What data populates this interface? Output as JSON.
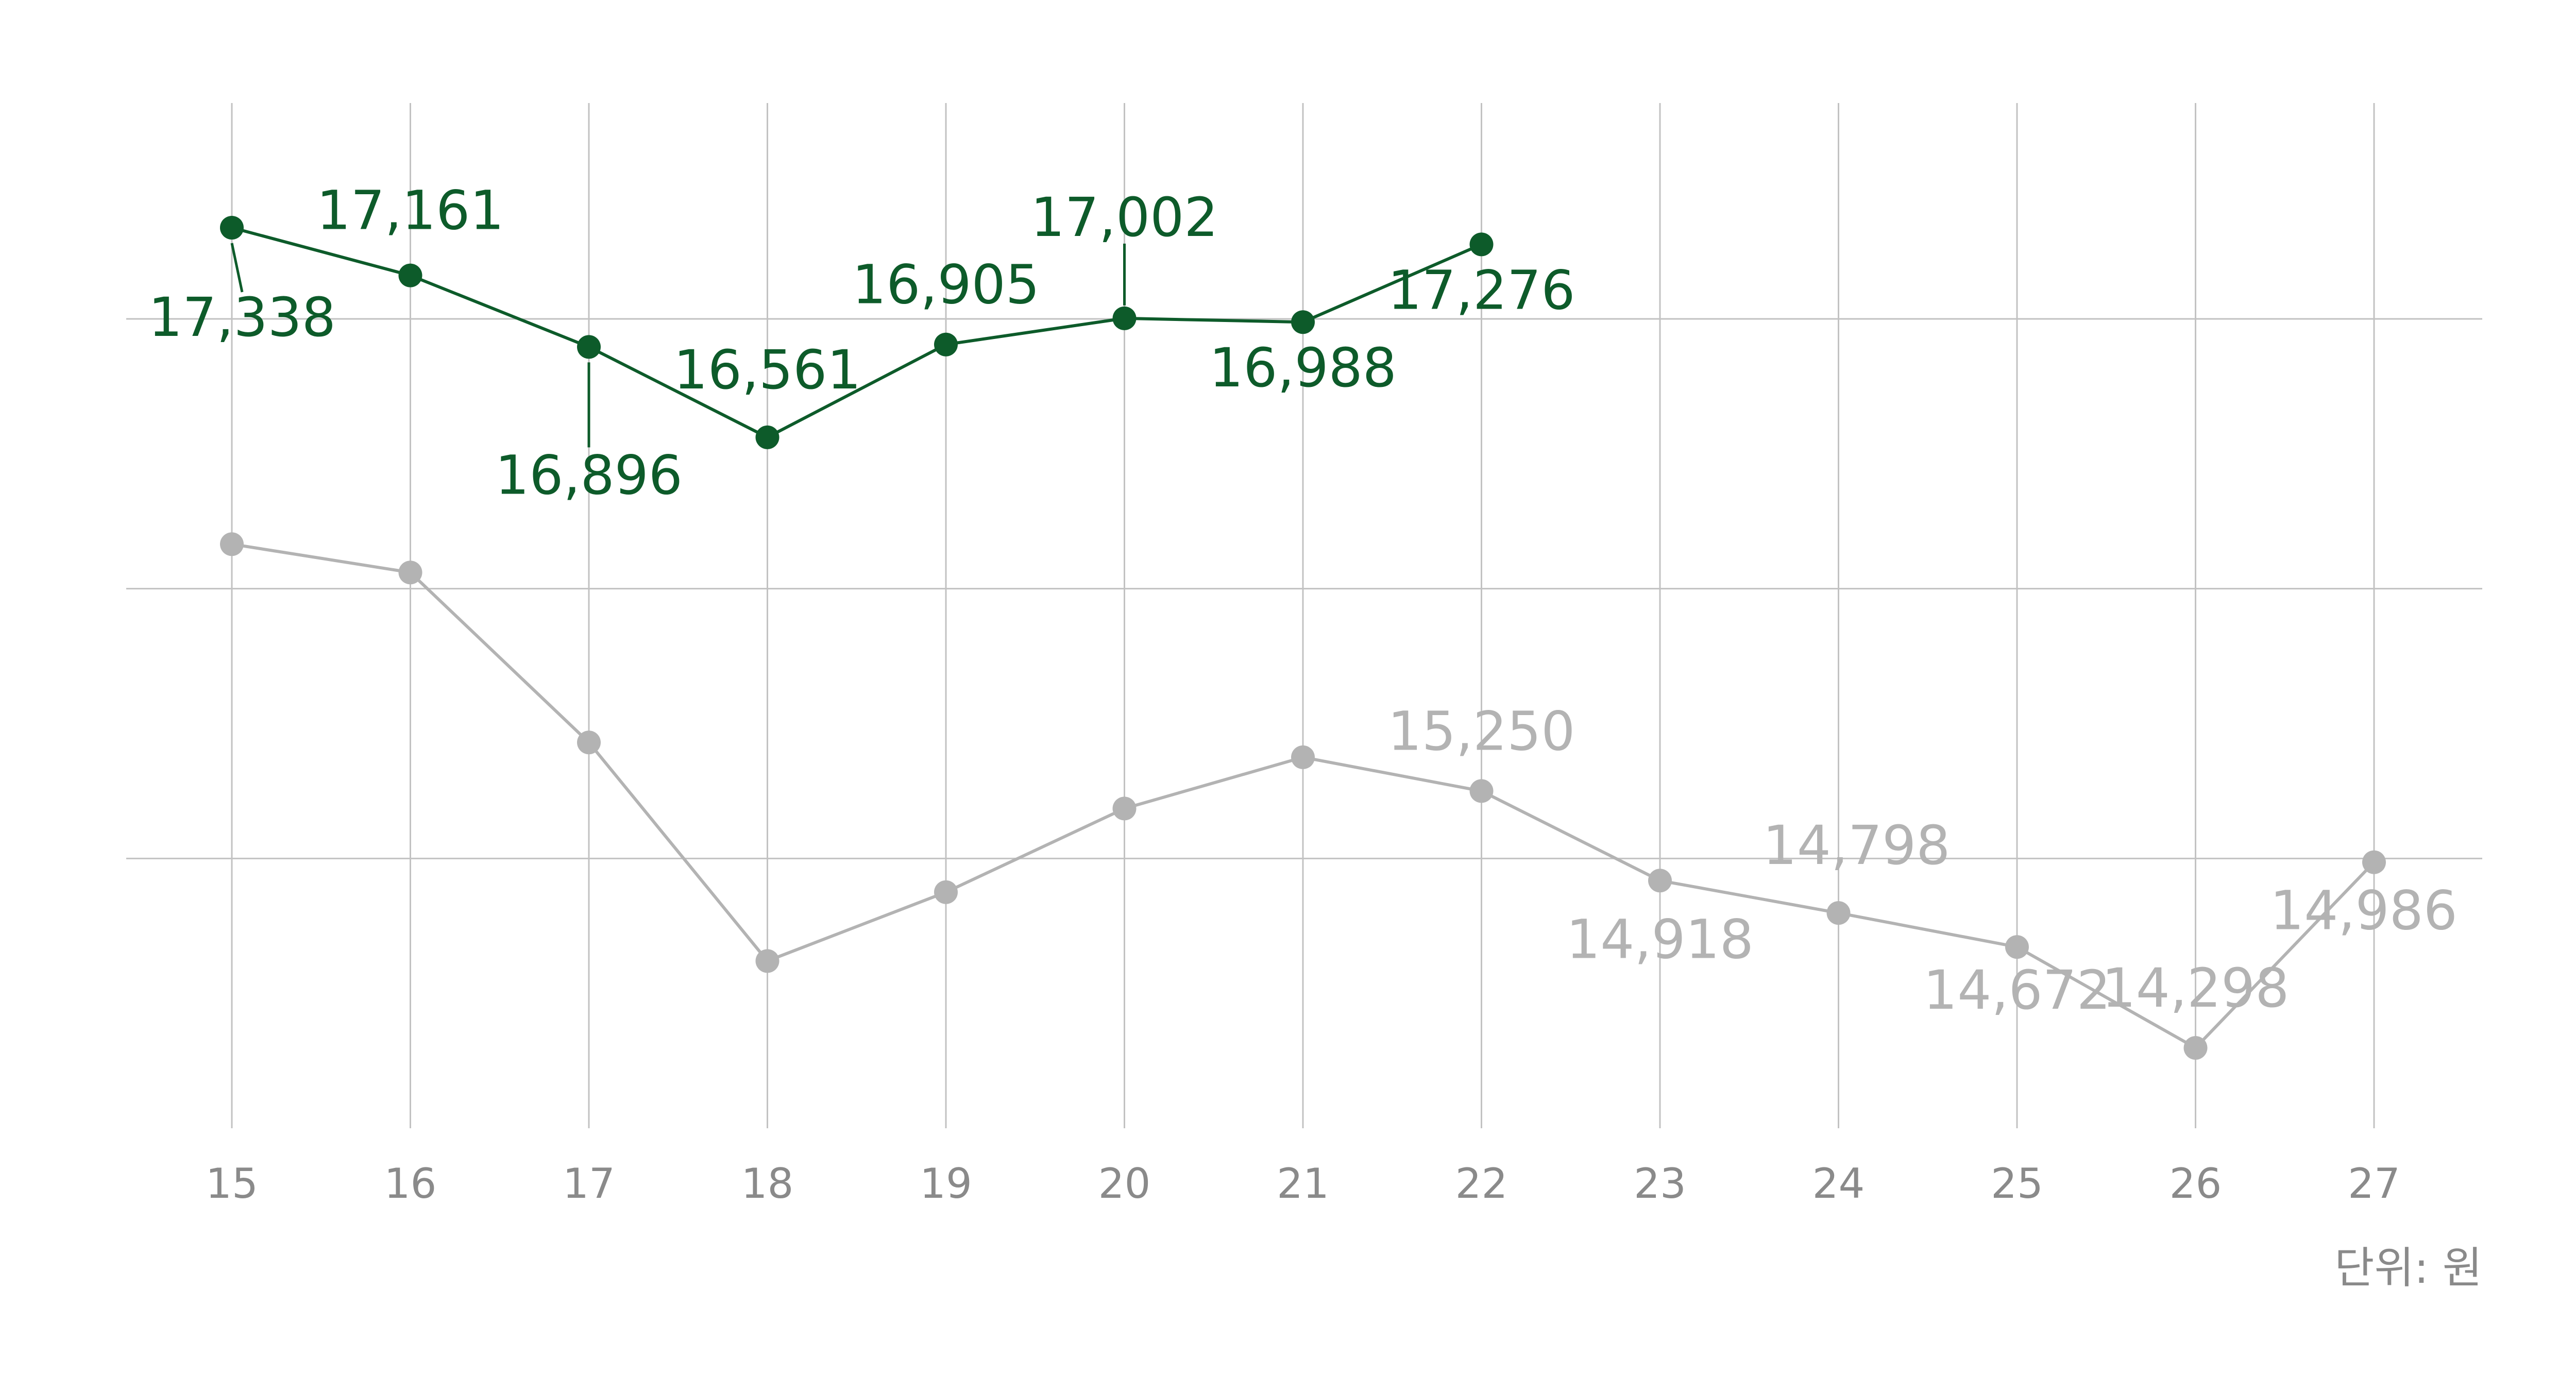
{
  "chart_data": {
    "type": "line",
    "x": [
      "15",
      "16",
      "17",
      "18",
      "19",
      "20",
      "21",
      "22",
      "23",
      "24",
      "25",
      "26",
      "27"
    ],
    "unit_label": "단위: 원",
    "ylim": [
      14000,
      17800
    ],
    "grid": true,
    "series": [
      {
        "key": "current",
        "color": "#0d5b2a",
        "values": [
          17338,
          17161,
          16896,
          16561,
          16905,
          17002,
          16988,
          17276,
          null,
          null,
          null,
          null,
          null
        ],
        "labels": [
          "17,338",
          "17,161",
          "16,896",
          "16,561",
          "16,905",
          "17,002",
          "16,988",
          "17,276",
          "",
          "",
          "",
          "",
          ""
        ]
      },
      {
        "key": "previous",
        "color": "#b3b3b3",
        "values": [
          16165,
          16060,
          15430,
          14620,
          14875,
          15185,
          15375,
          15250,
          14918,
          14798,
          14672,
          14298,
          14986
        ],
        "labels": [
          "",
          "",
          "",
          "",
          "",
          "",
          "",
          "15,250",
          "14,918",
          "14,798",
          "14,672",
          "14,298",
          "14,986"
        ]
      }
    ]
  }
}
